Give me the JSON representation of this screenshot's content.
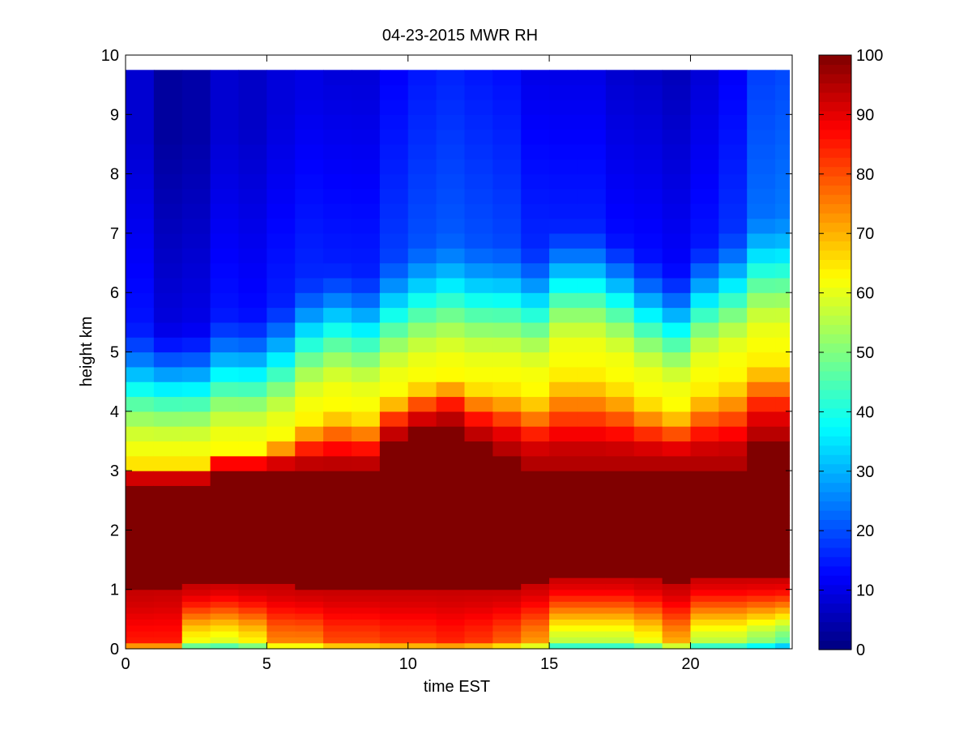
{
  "chart_data": {
    "type": "heatmap",
    "title": "04-23-2015 MWR RH",
    "xlabel": "time EST",
    "ylabel": "height km",
    "xlim": [
      0,
      23.6
    ],
    "ylim": [
      0,
      10
    ],
    "x_ticks": [
      0,
      5,
      10,
      15,
      20
    ],
    "y_ticks": [
      0,
      1,
      2,
      3,
      4,
      5,
      6,
      7,
      8,
      9,
      10
    ],
    "colorbar": {
      "min": 0,
      "max": 100,
      "ticks": [
        0,
        10,
        20,
        30,
        40,
        50,
        60,
        70,
        80,
        90,
        100
      ],
      "colormap": "jet"
    },
    "cell_time_step_h": 1,
    "data_extent": {
      "x": [
        0,
        23.5
      ],
      "y": [
        0,
        9.75
      ]
    },
    "times": [
      0,
      1,
      2,
      3,
      4,
      5,
      6,
      7,
      8,
      9,
      10,
      11,
      12,
      13,
      14,
      15,
      16,
      17,
      18,
      19,
      20,
      21,
      22,
      23
    ],
    "heights": [
      0,
      0.05,
      0.1,
      0.2,
      0.3,
      0.4,
      0.5,
      0.6,
      0.7,
      0.8,
      0.9,
      1.0,
      1.1,
      1.2,
      1.3,
      1.4,
      1.5,
      1.6,
      1.8,
      2.0,
      2.25,
      2.5,
      2.75,
      3.0,
      3.25,
      3.5,
      3.75,
      4.0,
      4.25,
      4.5,
      4.75,
      5.0,
      5.25,
      5.5,
      5.75,
      6.0,
      6.25,
      6.5,
      6.75,
      7.0,
      7.25,
      7.5,
      7.75,
      8.0,
      8.25,
      8.5,
      8.75,
      9.0,
      9.25,
      9.5,
      9.75
    ],
    "lower_cap_km": [
      1.0,
      1.05,
      1.1,
      1.15,
      1.1,
      1.1,
      1.05,
      1.05,
      1.05,
      1.05,
      1.05,
      1.05,
      1.05,
      1.05,
      1.15,
      1.25,
      1.25,
      1.25,
      1.2,
      1.1,
      1.25,
      1.25,
      1.25,
      1.25
    ],
    "sat_top_km": [
      2.8,
      2.8,
      2.8,
      3.0,
      3.0,
      3.0,
      3.0,
      3.0,
      3.0,
      3.5,
      3.7,
      3.8,
      3.5,
      3.3,
      3.1,
      3.1,
      3.1,
      3.1,
      3.1,
      3.1,
      3.1,
      3.1,
      3.5,
      3.5
    ],
    "profile_top_km": [
      3.2,
      3.2,
      3.2,
      3.4,
      3.4,
      3.6,
      4.0,
      4.2,
      4.1,
      4.4,
      4.6,
      4.7,
      4.6,
      4.6,
      4.5,
      4.9,
      4.9,
      4.7,
      4.4,
      4.2,
      4.6,
      4.8,
      5.1,
      5.1
    ],
    "near_surface_rh": [
      85,
      85,
      60,
      58,
      62,
      74,
      74,
      80,
      80,
      82,
      82,
      84,
      82,
      78,
      72,
      55,
      55,
      55,
      60,
      70,
      55,
      55,
      50,
      45
    ],
    "upper_rh": [
      8,
      3,
      4,
      8,
      7,
      9,
      10,
      9,
      9,
      12,
      14,
      15,
      14,
      13,
      10,
      9,
      9,
      7,
      7,
      6,
      8,
      11,
      17,
      18
    ]
  }
}
